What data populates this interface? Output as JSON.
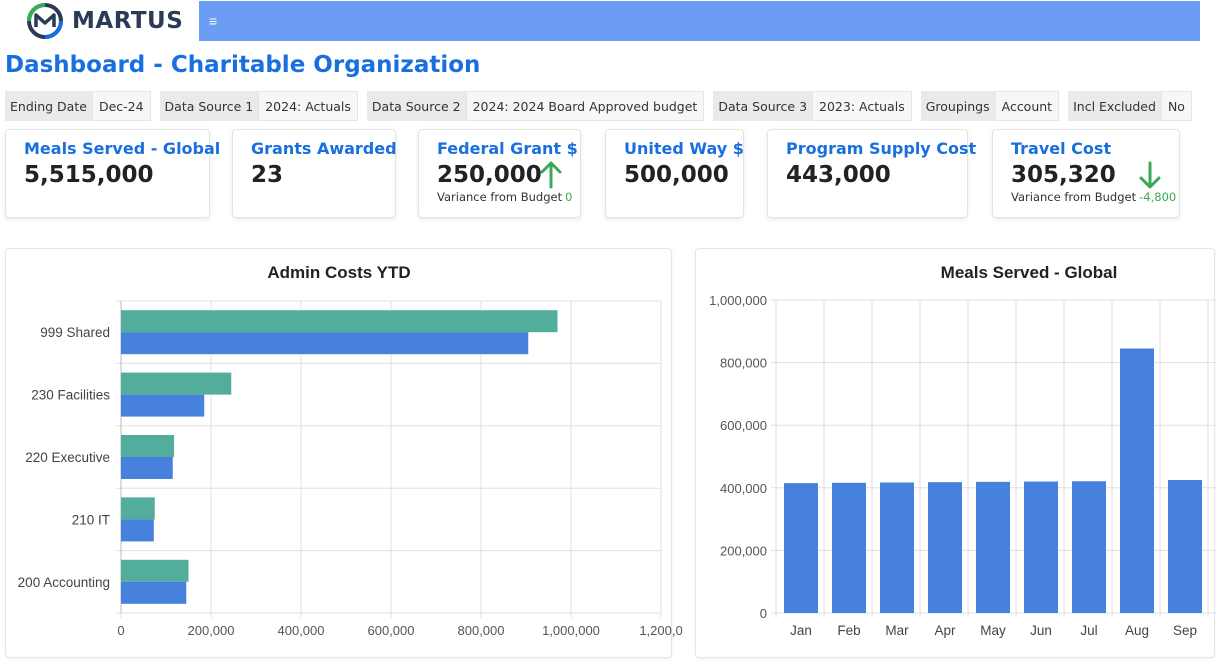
{
  "brand": {
    "name": "MARTUS",
    "menu_icon": "≡"
  },
  "page_title": "Dashboard - Charitable Organization",
  "filters": [
    {
      "label": "Ending Date",
      "value": "Dec-24"
    },
    {
      "label": "Data Source 1",
      "value": "2024: Actuals"
    },
    {
      "label": "Data Source 2",
      "value": "2024: 2024 Board Approved budget"
    },
    {
      "label": "Data Source 3",
      "value": "2023: Actuals"
    },
    {
      "label": "Groupings",
      "value": "Account"
    },
    {
      "label": "Incl Excluded",
      "value": "No"
    }
  ],
  "kpis": [
    {
      "title": "Meals Served - Global",
      "value": "5,515,000"
    },
    {
      "title": "Grants Awarded",
      "value": "23"
    },
    {
      "title": "Federal Grant $",
      "value": "250,000",
      "sub_label": "Variance from Budget",
      "sub_value": "0",
      "arrow": "up"
    },
    {
      "title": "United Way $",
      "value": "500,000"
    },
    {
      "title": "Program Supply Cost",
      "value": "443,000"
    },
    {
      "title": "Travel Cost",
      "value": "305,320",
      "sub_label": "Variance from Budget",
      "sub_value": "-4,800",
      "arrow": "down"
    }
  ],
  "colors": {
    "accent": "#1a6fe0",
    "nav": "#6b9df5",
    "bar_teal": "#52ad9c",
    "bar_blue": "#4681de",
    "arrow_green": "#3aa95a"
  },
  "chart_data": [
    {
      "type": "bar",
      "orientation": "horizontal",
      "title": "Admin Costs YTD",
      "categories": [
        "999 Shared",
        "230 Facilities",
        "220 Executive",
        "210 IT",
        "200 Accounting"
      ],
      "series": [
        {
          "values": [
            970000,
            245000,
            118000,
            75000,
            150000
          ]
        },
        {
          "values": [
            905000,
            185000,
            115000,
            73000,
            145000
          ]
        }
      ],
      "xlim": [
        0,
        1200000
      ],
      "xticks": [
        "0",
        "200,000",
        "400,000",
        "600,000",
        "800,000",
        "1,000,000",
        "1,200,0"
      ],
      "grid": true
    },
    {
      "type": "bar",
      "title": "Meals Served - Global",
      "categories": [
        "Jan",
        "Feb",
        "Mar",
        "Apr",
        "May",
        "Jun",
        "Jul",
        "Aug",
        "Sep"
      ],
      "values": [
        415000,
        416000,
        417000,
        418000,
        419000,
        420000,
        421000,
        845000,
        425000
      ],
      "ylim": [
        0,
        1000000
      ],
      "yticks": [
        "0",
        "200,000",
        "400,000",
        "600,000",
        "800,000",
        "1,000,000"
      ],
      "grid": true
    }
  ]
}
